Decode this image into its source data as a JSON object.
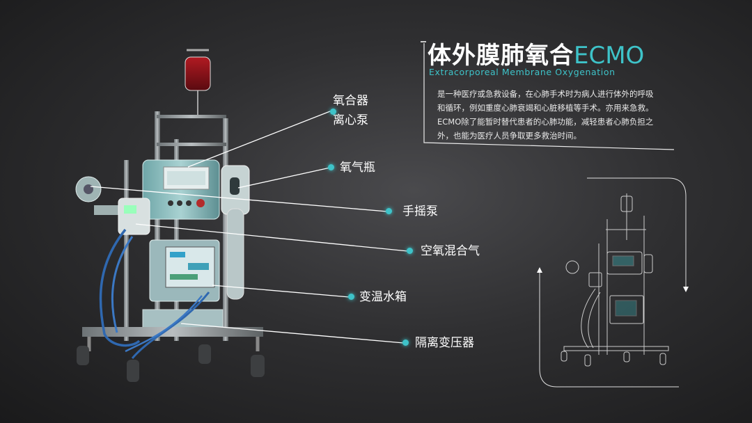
{
  "title": {
    "cn": "体外膜肺氧合",
    "acronym": "ECMO",
    "english": "Extracorporeal Membrane Oxygenation"
  },
  "description": "是一种医疗或急救设备，在心肺手术时为病人进行体外的呼吸和循环，例如重度心肺衰竭和心脏移植等手术。亦用来急救。ECMO除了能暂时替代患者的心肺功能，减轻患者心肺负担之外，也能为医疗人员争取更多救治时间。",
  "labels": {
    "oxygenator": "氧合器",
    "centrifugal_pump": "离心泵",
    "oxygen_bottle": "氧气瓶",
    "hand_pump": "手摇泵",
    "air_oxygen_mixer": "空氧混合气",
    "water_tank": "变温水箱",
    "isolation_transformer": "隔离变压器"
  },
  "colors": {
    "accent": "#3ec3c9",
    "background": "#2f2f31",
    "text": "#ffffff"
  }
}
